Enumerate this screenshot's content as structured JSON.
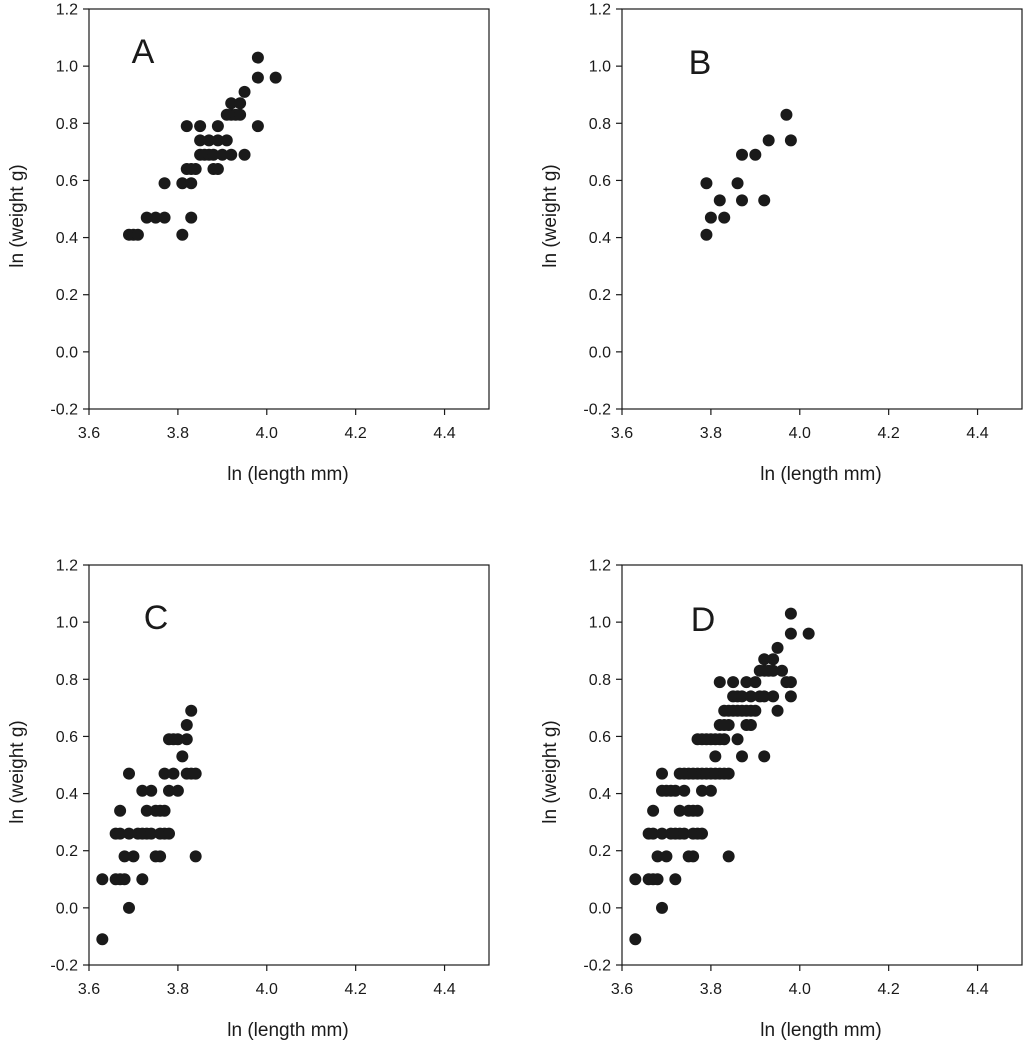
{
  "chart_data": [
    {
      "type": "scatter",
      "panel_label": "A",
      "xlabel": "ln (length mm)",
      "ylabel": "ln (weight g)",
      "xlim": [
        3.6,
        4.5
      ],
      "ylim": [
        -0.2,
        1.2
      ],
      "xticks": [
        "3.6",
        "3.8",
        "4.0",
        "4.2",
        "4.4"
      ],
      "yticks": [
        "-0.2",
        "0.0",
        "0.2",
        "0.4",
        "0.6",
        "0.8",
        "1.0",
        "1.2"
      ],
      "marker_color": "#1a1a1a",
      "points": [
        [
          3.69,
          0.41
        ],
        [
          3.7,
          0.41
        ],
        [
          3.71,
          0.41
        ],
        [
          3.73,
          0.47
        ],
        [
          3.75,
          0.47
        ],
        [
          3.77,
          0.47
        ],
        [
          3.77,
          0.59
        ],
        [
          3.81,
          0.41
        ],
        [
          3.81,
          0.59
        ],
        [
          3.82,
          0.64
        ],
        [
          3.82,
          0.79
        ],
        [
          3.83,
          0.47
        ],
        [
          3.83,
          0.59
        ],
        [
          3.83,
          0.64
        ],
        [
          3.84,
          0.64
        ],
        [
          3.85,
          0.69
        ],
        [
          3.85,
          0.74
        ],
        [
          3.85,
          0.79
        ],
        [
          3.86,
          0.69
        ],
        [
          3.87,
          0.69
        ],
        [
          3.87,
          0.74
        ],
        [
          3.88,
          0.64
        ],
        [
          3.88,
          0.69
        ],
        [
          3.89,
          0.64
        ],
        [
          3.89,
          0.74
        ],
        [
          3.89,
          0.79
        ],
        [
          3.9,
          0.69
        ],
        [
          3.91,
          0.74
        ],
        [
          3.91,
          0.83
        ],
        [
          3.92,
          0.69
        ],
        [
          3.92,
          0.83
        ],
        [
          3.92,
          0.87
        ],
        [
          3.93,
          0.83
        ],
        [
          3.94,
          0.83
        ],
        [
          3.94,
          0.87
        ],
        [
          3.95,
          0.69
        ],
        [
          3.95,
          0.91
        ],
        [
          3.98,
          0.79
        ],
        [
          3.98,
          0.96
        ],
        [
          3.98,
          1.03
        ],
        [
          4.02,
          0.96
        ]
      ]
    },
    {
      "type": "scatter",
      "panel_label": "B",
      "xlabel": "ln (length mm)",
      "ylabel": "ln (weight g)",
      "xlim": [
        3.6,
        4.5
      ],
      "ylim": [
        -0.2,
        1.2
      ],
      "xticks": [
        "3.6",
        "3.8",
        "4.0",
        "4.2",
        "4.4"
      ],
      "yticks": [
        "-0.2",
        "0.0",
        "0.2",
        "0.4",
        "0.6",
        "0.8",
        "1.0",
        "1.2"
      ],
      "marker_color": "#1a1a1a",
      "points": [
        [
          3.79,
          0.41
        ],
        [
          3.79,
          0.59
        ],
        [
          3.8,
          0.47
        ],
        [
          3.82,
          0.53
        ],
        [
          3.83,
          0.47
        ],
        [
          3.86,
          0.59
        ],
        [
          3.87,
          0.53
        ],
        [
          3.87,
          0.69
        ],
        [
          3.9,
          0.69
        ],
        [
          3.92,
          0.53
        ],
        [
          3.93,
          0.74
        ],
        [
          3.97,
          0.83
        ],
        [
          3.98,
          0.74
        ]
      ]
    },
    {
      "type": "scatter",
      "panel_label": "C",
      "xlabel": "ln (length mm)",
      "ylabel": "ln (weight g)",
      "xlim": [
        3.6,
        4.5
      ],
      "ylim": [
        -0.2,
        1.2
      ],
      "xticks": [
        "3.6",
        "3.8",
        "4.0",
        "4.2",
        "4.4"
      ],
      "yticks": [
        "-0.2",
        "0.0",
        "0.2",
        "0.4",
        "0.6",
        "0.8",
        "1.0",
        "1.2"
      ],
      "marker_color": "#1a1a1a",
      "points": [
        [
          3.63,
          -0.11
        ],
        [
          3.63,
          0.1
        ],
        [
          3.66,
          0.1
        ],
        [
          3.66,
          0.26
        ],
        [
          3.67,
          0.1
        ],
        [
          3.67,
          0.26
        ],
        [
          3.67,
          0.34
        ],
        [
          3.68,
          0.1
        ],
        [
          3.68,
          0.18
        ],
        [
          3.69,
          0.0
        ],
        [
          3.69,
          0.26
        ],
        [
          3.69,
          0.47
        ],
        [
          3.7,
          0.18
        ],
        [
          3.71,
          0.26
        ],
        [
          3.72,
          0.1
        ],
        [
          3.72,
          0.26
        ],
        [
          3.72,
          0.41
        ],
        [
          3.73,
          0.26
        ],
        [
          3.73,
          0.34
        ],
        [
          3.74,
          0.26
        ],
        [
          3.74,
          0.41
        ],
        [
          3.75,
          0.18
        ],
        [
          3.75,
          0.34
        ],
        [
          3.76,
          0.18
        ],
        [
          3.76,
          0.26
        ],
        [
          3.76,
          0.34
        ],
        [
          3.77,
          0.26
        ],
        [
          3.77,
          0.34
        ],
        [
          3.77,
          0.47
        ],
        [
          3.78,
          0.26
        ],
        [
          3.78,
          0.41
        ],
        [
          3.78,
          0.59
        ],
        [
          3.79,
          0.47
        ],
        [
          3.79,
          0.59
        ],
        [
          3.8,
          0.41
        ],
        [
          3.8,
          0.59
        ],
        [
          3.81,
          0.53
        ],
        [
          3.82,
          0.47
        ],
        [
          3.82,
          0.59
        ],
        [
          3.82,
          0.64
        ],
        [
          3.83,
          0.47
        ],
        [
          3.83,
          0.69
        ],
        [
          3.84,
          0.18
        ],
        [
          3.84,
          0.47
        ]
      ]
    },
    {
      "type": "scatter",
      "panel_label": "D",
      "xlabel": "ln (length mm)",
      "ylabel": "ln (weight g)",
      "xlim": [
        3.6,
        4.5
      ],
      "ylim": [
        -0.2,
        1.2
      ],
      "xticks": [
        "3.6",
        "3.8",
        "4.0",
        "4.2",
        "4.4"
      ],
      "yticks": [
        "-0.2",
        "0.0",
        "0.2",
        "0.4",
        "0.6",
        "0.8",
        "1.0",
        "1.2"
      ],
      "marker_color": "#1a1a1a",
      "points": [
        [
          3.63,
          -0.11
        ],
        [
          3.63,
          0.1
        ],
        [
          3.66,
          0.1
        ],
        [
          3.66,
          0.26
        ],
        [
          3.67,
          0.1
        ],
        [
          3.67,
          0.26
        ],
        [
          3.67,
          0.34
        ],
        [
          3.68,
          0.1
        ],
        [
          3.68,
          0.18
        ],
        [
          3.69,
          0.0
        ],
        [
          3.69,
          0.26
        ],
        [
          3.69,
          0.41
        ],
        [
          3.69,
          0.47
        ],
        [
          3.7,
          0.18
        ],
        [
          3.7,
          0.41
        ],
        [
          3.71,
          0.26
        ],
        [
          3.71,
          0.41
        ],
        [
          3.72,
          0.1
        ],
        [
          3.72,
          0.26
        ],
        [
          3.72,
          0.41
        ],
        [
          3.73,
          0.26
        ],
        [
          3.73,
          0.34
        ],
        [
          3.73,
          0.47
        ],
        [
          3.74,
          0.26
        ],
        [
          3.74,
          0.41
        ],
        [
          3.74,
          0.47
        ],
        [
          3.75,
          0.18
        ],
        [
          3.75,
          0.34
        ],
        [
          3.75,
          0.47
        ],
        [
          3.76,
          0.18
        ],
        [
          3.76,
          0.26
        ],
        [
          3.76,
          0.34
        ],
        [
          3.76,
          0.47
        ],
        [
          3.77,
          0.26
        ],
        [
          3.77,
          0.34
        ],
        [
          3.77,
          0.47
        ],
        [
          3.77,
          0.59
        ],
        [
          3.78,
          0.26
        ],
        [
          3.78,
          0.41
        ],
        [
          3.78,
          0.47
        ],
        [
          3.78,
          0.59
        ],
        [
          3.79,
          0.47
        ],
        [
          3.79,
          0.59
        ],
        [
          3.8,
          0.41
        ],
        [
          3.8,
          0.47
        ],
        [
          3.8,
          0.59
        ],
        [
          3.81,
          0.47
        ],
        [
          3.81,
          0.53
        ],
        [
          3.81,
          0.59
        ],
        [
          3.82,
          0.47
        ],
        [
          3.82,
          0.59
        ],
        [
          3.82,
          0.64
        ],
        [
          3.82,
          0.79
        ],
        [
          3.83,
          0.47
        ],
        [
          3.83,
          0.59
        ],
        [
          3.83,
          0.64
        ],
        [
          3.83,
          0.69
        ],
        [
          3.84,
          0.18
        ],
        [
          3.84,
          0.47
        ],
        [
          3.84,
          0.64
        ],
        [
          3.84,
          0.69
        ],
        [
          3.85,
          0.69
        ],
        [
          3.85,
          0.74
        ],
        [
          3.85,
          0.79
        ],
        [
          3.86,
          0.59
        ],
        [
          3.86,
          0.69
        ],
        [
          3.86,
          0.74
        ],
        [
          3.87,
          0.53
        ],
        [
          3.87,
          0.69
        ],
        [
          3.87,
          0.74
        ],
        [
          3.88,
          0.64
        ],
        [
          3.88,
          0.69
        ],
        [
          3.88,
          0.79
        ],
        [
          3.89,
          0.64
        ],
        [
          3.89,
          0.69
        ],
        [
          3.89,
          0.74
        ],
        [
          3.9,
          0.69
        ],
        [
          3.9,
          0.79
        ],
        [
          3.91,
          0.74
        ],
        [
          3.91,
          0.83
        ],
        [
          3.92,
          0.53
        ],
        [
          3.92,
          0.74
        ],
        [
          3.92,
          0.83
        ],
        [
          3.92,
          0.87
        ],
        [
          3.93,
          0.83
        ],
        [
          3.94,
          0.74
        ],
        [
          3.94,
          0.83
        ],
        [
          3.94,
          0.87
        ],
        [
          3.95,
          0.69
        ],
        [
          3.95,
          0.91
        ],
        [
          3.96,
          0.83
        ],
        [
          3.97,
          0.79
        ],
        [
          3.98,
          0.74
        ],
        [
          3.98,
          0.79
        ],
        [
          3.98,
          0.96
        ],
        [
          3.98,
          1.03
        ],
        [
          4.02,
          0.96
        ]
      ]
    }
  ]
}
